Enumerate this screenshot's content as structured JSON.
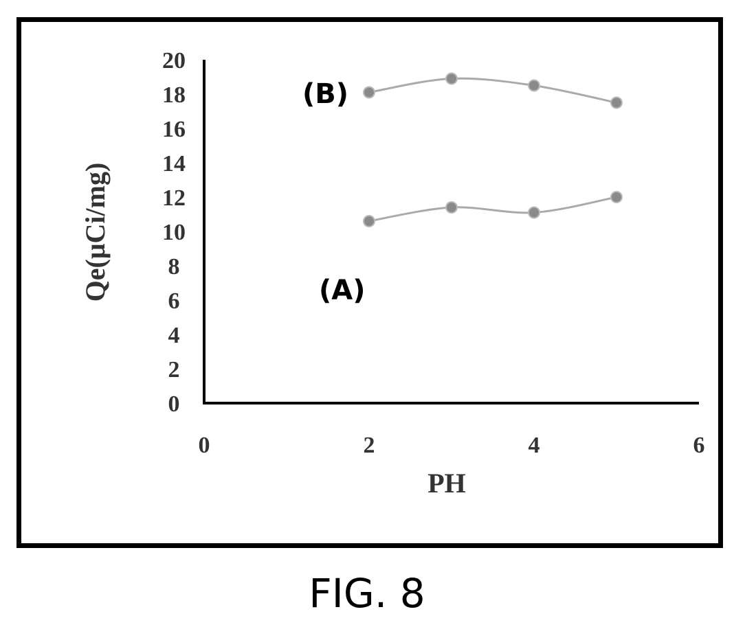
{
  "caption": "FIG. 8",
  "chart_data": {
    "type": "line",
    "xlabel": "PH",
    "ylabel": "Qe(μCi/mg)",
    "xlim": [
      0,
      6
    ],
    "ylim": [
      0,
      20
    ],
    "x_ticks": [
      0,
      2,
      4,
      6
    ],
    "y_ticks": [
      0,
      2,
      4,
      6,
      8,
      10,
      12,
      14,
      16,
      18,
      20
    ],
    "grid": false,
    "legend": "none",
    "series": [
      {
        "name": "(A)",
        "x": [
          2,
          3,
          4,
          5
        ],
        "y": [
          10.6,
          11.4,
          11.1,
          12.0
        ]
      },
      {
        "name": "(B)",
        "x": [
          2,
          3,
          4,
          5
        ],
        "y": [
          18.1,
          18.9,
          18.5,
          17.5
        ]
      }
    ],
    "colors": {
      "line": "#aaaaaa",
      "marker": "#8a8a8a",
      "axis": "#000000",
      "text": "#333333"
    }
  }
}
